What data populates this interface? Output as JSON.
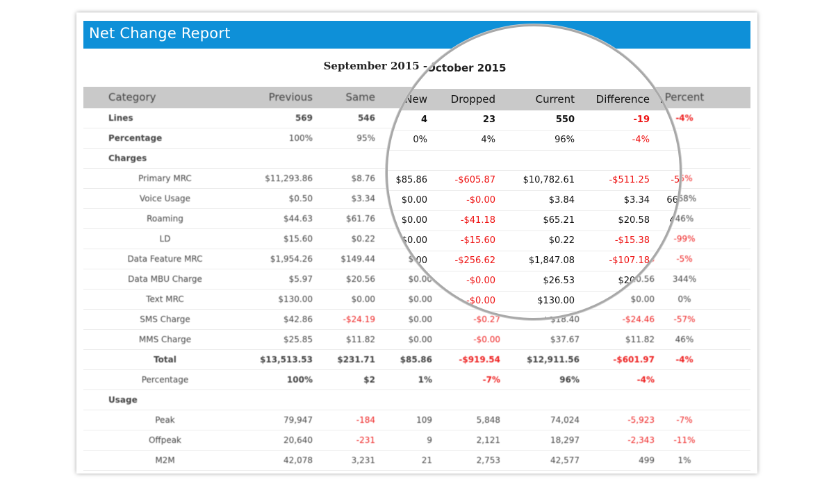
{
  "report": {
    "title": "Net Change Report",
    "period": "September 2015 - October 2015"
  },
  "columns": [
    "Category",
    "Previous",
    "Same",
    "New",
    "Dropped",
    "Current",
    "Difference",
    "Percent"
  ],
  "rows": [
    {
      "label": "Lines",
      "indent": false,
      "bold": true,
      "values": [
        "569",
        "546",
        "4",
        "23",
        "550",
        "-19",
        "-4%"
      ],
      "red": [
        false,
        false,
        false,
        false,
        false,
        true,
        true
      ]
    },
    {
      "label": "Percentage",
      "indent": false,
      "bold": true,
      "labelOnlyBold": true,
      "values": [
        "100%",
        "95%",
        "0%",
        "4%",
        "96%",
        "-4%",
        ""
      ],
      "red": [
        false,
        false,
        false,
        false,
        false,
        true,
        false
      ]
    },
    {
      "label": "Charges",
      "indent": false,
      "bold": true,
      "section": true,
      "values": [
        "",
        "",
        "",
        "",
        "",
        "",
        ""
      ],
      "red": [
        false,
        false,
        false,
        false,
        false,
        false,
        false
      ]
    },
    {
      "label": "Primary MRC",
      "indent": true,
      "values": [
        "$11,293.86",
        "$8.76",
        "$85.86",
        "-$605.87",
        "$10,782.61",
        "-$511.25",
        "-5%"
      ],
      "red": [
        false,
        false,
        false,
        true,
        false,
        true,
        true
      ]
    },
    {
      "label": "Voice Usage",
      "indent": true,
      "values": [
        "$0.50",
        "$3.34",
        "$0.00",
        "-$0.00",
        "$3.84",
        "$3.34",
        "668%"
      ],
      "red": [
        false,
        false,
        false,
        true,
        false,
        false,
        false
      ]
    },
    {
      "label": "Roaming",
      "indent": true,
      "values": [
        "$44.63",
        "$61.76",
        "$0.00",
        "-$41.18",
        "$65.21",
        "$20.58",
        "46%"
      ],
      "red": [
        false,
        false,
        false,
        true,
        false,
        false,
        false
      ]
    },
    {
      "label": "LD",
      "indent": true,
      "values": [
        "$15.60",
        "$0.22",
        "$0.00",
        "-$15.60",
        "$0.22",
        "-$15.38",
        "-99%"
      ],
      "red": [
        false,
        false,
        false,
        true,
        false,
        true,
        true
      ]
    },
    {
      "label": "Data Feature MRC",
      "indent": true,
      "values": [
        "$1,954.26",
        "$149.44",
        "$0.00",
        "-$256.62",
        "$1,847.08",
        "-$107.18",
        "-5%"
      ],
      "red": [
        false,
        false,
        false,
        true,
        false,
        true,
        true
      ]
    },
    {
      "label": "Data MBU Charge",
      "indent": true,
      "values": [
        "$5.97",
        "$20.56",
        "$0.00",
        "-$0.00",
        "$26.53",
        "$20.56",
        "344%"
      ],
      "red": [
        false,
        false,
        false,
        true,
        false,
        false,
        false
      ]
    },
    {
      "label": "Text MRC",
      "indent": true,
      "values": [
        "$130.00",
        "$0.00",
        "$0.00",
        "-$0.00",
        "$130.00",
        "$0.00",
        "0%"
      ],
      "red": [
        false,
        false,
        false,
        true,
        false,
        false,
        false
      ]
    },
    {
      "label": "SMS Charge",
      "indent": true,
      "values": [
        "$42.86",
        "-$24.19",
        "$0.00",
        "-$0.27",
        "$18.40",
        "-$24.46",
        "-57%"
      ],
      "red": [
        false,
        true,
        false,
        true,
        false,
        true,
        true
      ]
    },
    {
      "label": "MMS Charge",
      "indent": true,
      "values": [
        "$25.85",
        "$11.82",
        "$0.00",
        "-$0.00",
        "$37.67",
        "$11.82",
        "46%"
      ],
      "red": [
        false,
        false,
        false,
        true,
        false,
        false,
        false
      ]
    },
    {
      "label": "Total",
      "indent": true,
      "bold": true,
      "valuesBold": true,
      "values": [
        "$13,513.53",
        "$231.71",
        "$85.86",
        "-$919.54",
        "$12,911.56",
        "-$601.97",
        "-4%"
      ],
      "red": [
        false,
        false,
        false,
        true,
        false,
        true,
        true
      ]
    },
    {
      "label": "Percentage",
      "indent": true,
      "valuesBold": true,
      "values": [
        "100%",
        "$2",
        "1%",
        "-7%",
        "96%",
        "-4%",
        ""
      ],
      "red": [
        false,
        false,
        false,
        true,
        false,
        true,
        false
      ]
    },
    {
      "label": "Usage",
      "indent": false,
      "bold": true,
      "section": true,
      "values": [
        "",
        "",
        "",
        "",
        "",
        "",
        ""
      ],
      "red": [
        false,
        false,
        false,
        false,
        false,
        false,
        false
      ]
    },
    {
      "label": "Peak",
      "indent": true,
      "values": [
        "79,947",
        "-184",
        "109",
        "5,848",
        "74,024",
        "-5,923",
        "-7%"
      ],
      "red": [
        false,
        true,
        false,
        false,
        false,
        true,
        true
      ]
    },
    {
      "label": "Offpeak",
      "indent": true,
      "values": [
        "20,640",
        "-231",
        "9",
        "2,121",
        "18,297",
        "-2,343",
        "-11%"
      ],
      "red": [
        false,
        true,
        false,
        false,
        false,
        true,
        true
      ]
    },
    {
      "label": "M2M",
      "indent": true,
      "values": [
        "42,078",
        "3,231",
        "21",
        "2,753",
        "42,577",
        "499",
        "1%"
      ],
      "red": [
        false,
        false,
        false,
        false,
        false,
        false,
        false
      ]
    }
  ]
}
